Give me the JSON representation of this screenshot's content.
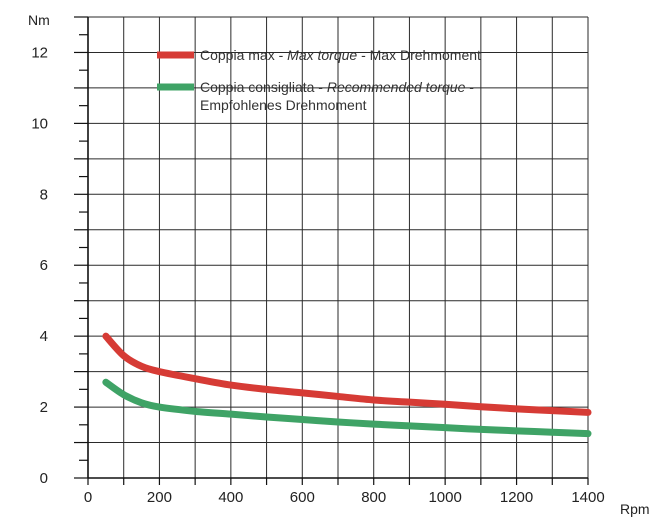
{
  "chart_data": {
    "type": "line",
    "xlabel": "Rpm",
    "ylabel": "Nm",
    "xlim": [
      0,
      1400
    ],
    "ylim": [
      0,
      13
    ],
    "x_ticks": [
      "0",
      "200",
      "400",
      "600",
      "800",
      "1000",
      "1200",
      "1400"
    ],
    "y_ticks": [
      "0",
      "2",
      "4",
      "6",
      "8",
      "10",
      "12"
    ],
    "grid": true,
    "legend_placement": "top-right",
    "series": [
      {
        "name": "Coppia max - Max torque - Max Drehmoment",
        "name_parts": [
          "Coppia max - ",
          "Max torque",
          " - Max Drehmoment"
        ],
        "color": "#d63b35",
        "x": [
          50,
          100,
          150,
          200,
          300,
          400,
          500,
          600,
          700,
          800,
          900,
          1000,
          1100,
          1200,
          1300,
          1400
        ],
        "values": [
          4.0,
          3.45,
          3.15,
          3.0,
          2.8,
          2.62,
          2.5,
          2.4,
          2.3,
          2.2,
          2.14,
          2.08,
          2.01,
          1.95,
          1.9,
          1.85
        ]
      },
      {
        "name": "Coppia consigliata - Recommended torque - Empfohlenes Drehmoment",
        "name_parts": [
          "Coppia consigliata - ",
          "Recommended torque",
          " -"
        ],
        "name_line2": "Empfohlenes Drehmoment",
        "color": "#3fa366",
        "x": [
          50,
          100,
          150,
          200,
          300,
          400,
          500,
          600,
          700,
          800,
          900,
          1000,
          1100,
          1200,
          1300,
          1400
        ],
        "values": [
          2.7,
          2.35,
          2.12,
          2.0,
          1.88,
          1.8,
          1.72,
          1.65,
          1.58,
          1.52,
          1.47,
          1.42,
          1.37,
          1.33,
          1.29,
          1.25
        ]
      }
    ]
  }
}
